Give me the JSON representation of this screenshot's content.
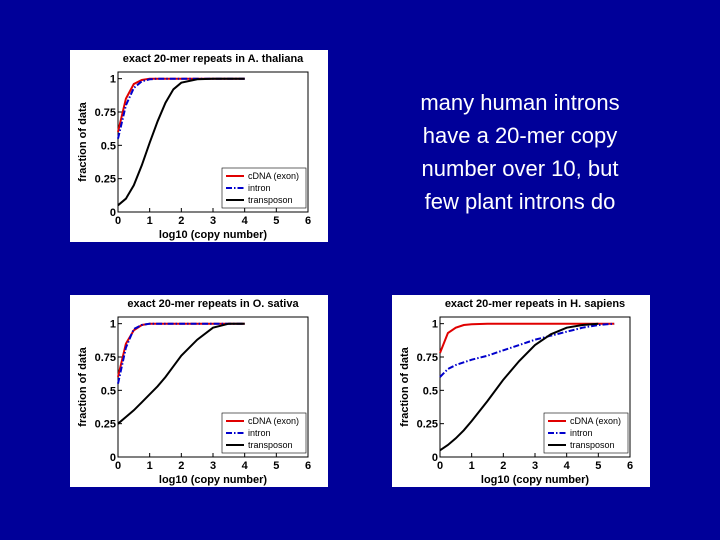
{
  "slide_text": [
    "many human introns",
    "have a 20-mer copy",
    "number over 10, but",
    "few plant introns do"
  ],
  "chart_data": [
    {
      "type": "line",
      "title": "exact 20-mer repeats in A. thaliana",
      "x_label": "log10 (copy number)",
      "y_label": "fraction of data",
      "x": [
        0,
        0.25,
        0.5,
        0.75,
        1,
        1.25,
        1.5,
        1.75,
        2,
        2.5,
        3,
        3.5,
        4
      ],
      "series": [
        {
          "name": "cDNA (exon)",
          "color": "#e00000",
          "linestyle": "solid",
          "values": [
            0.6,
            0.85,
            0.96,
            0.99,
            1,
            1,
            1,
            1,
            1,
            1,
            1,
            1,
            1
          ]
        },
        {
          "name": "intron",
          "color": "#0000cc",
          "linestyle": "dashdot",
          "values": [
            0.55,
            0.8,
            0.93,
            0.98,
            0.995,
            1,
            1,
            1,
            1,
            1,
            1,
            1,
            1
          ]
        },
        {
          "name": "transposon",
          "color": "#000000",
          "linestyle": "solid",
          "values": [
            0.05,
            0.1,
            0.2,
            0.35,
            0.52,
            0.68,
            0.82,
            0.92,
            0.97,
            0.995,
            1,
            1,
            1
          ]
        }
      ],
      "xlim": [
        0,
        6
      ],
      "ylim": [
        0,
        1.05
      ],
      "xticks": [
        0,
        1,
        2,
        3,
        4,
        5,
        6
      ],
      "yticks": [
        0,
        0.25,
        0.5,
        0.75,
        1
      ],
      "legend": "lower right"
    },
    {
      "type": "line",
      "title": "exact 20-mer repeats in O. sativa",
      "x_label": "log10 (copy number)",
      "y_label": "fraction of data",
      "x": [
        0,
        0.25,
        0.5,
        0.75,
        1,
        1.25,
        1.5,
        1.75,
        2,
        2.5,
        3,
        3.5,
        4
      ],
      "series": [
        {
          "name": "cDNA (exon)",
          "color": "#e00000",
          "linestyle": "solid",
          "values": [
            0.6,
            0.85,
            0.95,
            0.99,
            1,
            1,
            1,
            1,
            1,
            1,
            1,
            1,
            1
          ]
        },
        {
          "name": "intron",
          "color": "#0000cc",
          "linestyle": "dashdot",
          "values": [
            0.55,
            0.82,
            0.96,
            0.99,
            1,
            1,
            1,
            1,
            1,
            1,
            1,
            1,
            1
          ]
        },
        {
          "name": "transposon",
          "color": "#000000",
          "linestyle": "solid",
          "values": [
            0.25,
            0.3,
            0.35,
            0.41,
            0.47,
            0.53,
            0.6,
            0.68,
            0.76,
            0.88,
            0.97,
            1,
            1
          ]
        }
      ],
      "xlim": [
        0,
        6
      ],
      "ylim": [
        0,
        1.05
      ],
      "xticks": [
        0,
        1,
        2,
        3,
        4,
        5,
        6
      ],
      "yticks": [
        0,
        0.25,
        0.5,
        0.75,
        1
      ],
      "legend": "lower right"
    },
    {
      "type": "line",
      "title": "exact 20-mer repeats in H. sapiens",
      "x_label": "log10 (copy number)",
      "y_label": "fraction of data",
      "x": [
        0,
        0.25,
        0.5,
        0.75,
        1,
        1.5,
        2,
        2.5,
        3,
        3.5,
        4,
        4.5,
        5,
        5.5
      ],
      "series": [
        {
          "name": "cDNA (exon)",
          "color": "#e00000",
          "linestyle": "solid",
          "values": [
            0.78,
            0.93,
            0.97,
            0.99,
            0.995,
            1,
            1,
            1,
            1,
            1,
            1,
            1,
            1,
            1
          ]
        },
        {
          "name": "intron",
          "color": "#0000cc",
          "linestyle": "dashdot",
          "values": [
            0.6,
            0.66,
            0.69,
            0.71,
            0.73,
            0.76,
            0.8,
            0.84,
            0.88,
            0.91,
            0.94,
            0.97,
            0.99,
            1
          ]
        },
        {
          "name": "transposon",
          "color": "#000000",
          "linestyle": "solid",
          "values": [
            0.05,
            0.09,
            0.14,
            0.2,
            0.27,
            0.42,
            0.58,
            0.72,
            0.84,
            0.92,
            0.97,
            0.99,
            1,
            null
          ]
        }
      ],
      "xlim": [
        0,
        6
      ],
      "ylim": [
        0,
        1.05
      ],
      "xticks": [
        0,
        1,
        2,
        3,
        4,
        5,
        6
      ],
      "yticks": [
        0,
        0.25,
        0.5,
        0.75,
        1
      ],
      "legend": "lower right"
    }
  ]
}
